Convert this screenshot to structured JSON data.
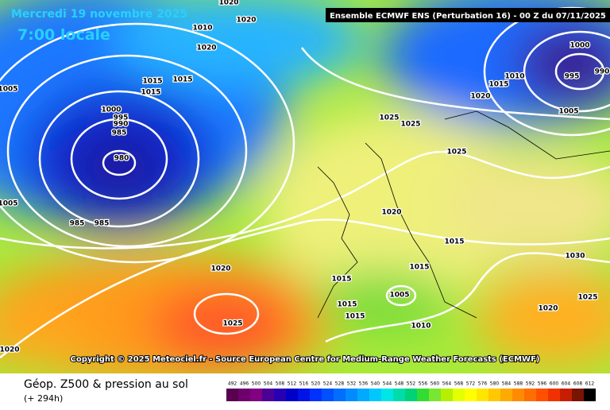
{
  "header": {
    "date": "Mercredi 19 novembre 2025",
    "time": "7:00 locale",
    "model": "Ensemble ECMWF ENS  (Perturbation 16)  - 00 Z du 07/11/2025"
  },
  "copyright": "Copyright © 2025 Meteociel.fr - Source European Centre for Medium-Range Weather Forecasts (ECMWF)",
  "footer": {
    "title": "Géop. Z500 & pression au sol",
    "lead": "(+ 294h)"
  },
  "isobar_labels": [
    "1005",
    "1020",
    "1020",
    "1010",
    "1020",
    "1015",
    "1015",
    "1015",
    "1000",
    "995",
    "990",
    "985",
    "980",
    "985",
    "985",
    "1005",
    "1020",
    "1025",
    "1020",
    "1025",
    "1025",
    "1025",
    "1020",
    "1015",
    "1015",
    "1015",
    "1015",
    "1015",
    "1005",
    "1010",
    "1020",
    "1025",
    "1030",
    "1020",
    "1015",
    "1010",
    "1000",
    "995",
    "990",
    "1005"
  ],
  "legend": {
    "values": [
      492,
      496,
      500,
      504,
      508,
      512,
      516,
      520,
      524,
      528,
      532,
      536,
      540,
      544,
      548,
      552,
      556,
      560,
      564,
      568,
      572,
      576,
      580,
      584,
      588,
      592,
      596,
      600,
      604,
      608,
      612
    ],
    "colors": [
      "#5a0050",
      "#6e006e",
      "#820082",
      "#4b0096",
      "#2800b4",
      "#0000c8",
      "#0014e6",
      "#0032ff",
      "#0050ff",
      "#006eff",
      "#008cff",
      "#00aaff",
      "#00c8ff",
      "#00e6e6",
      "#00dcaa",
      "#00d278",
      "#32dc32",
      "#78e632",
      "#b4f000",
      "#e6ff00",
      "#ffff00",
      "#ffe600",
      "#ffc800",
      "#ffaa00",
      "#ff8c00",
      "#ff6e00",
      "#ff5000",
      "#f03200",
      "#c81e00",
      "#781400",
      "#000000"
    ]
  }
}
